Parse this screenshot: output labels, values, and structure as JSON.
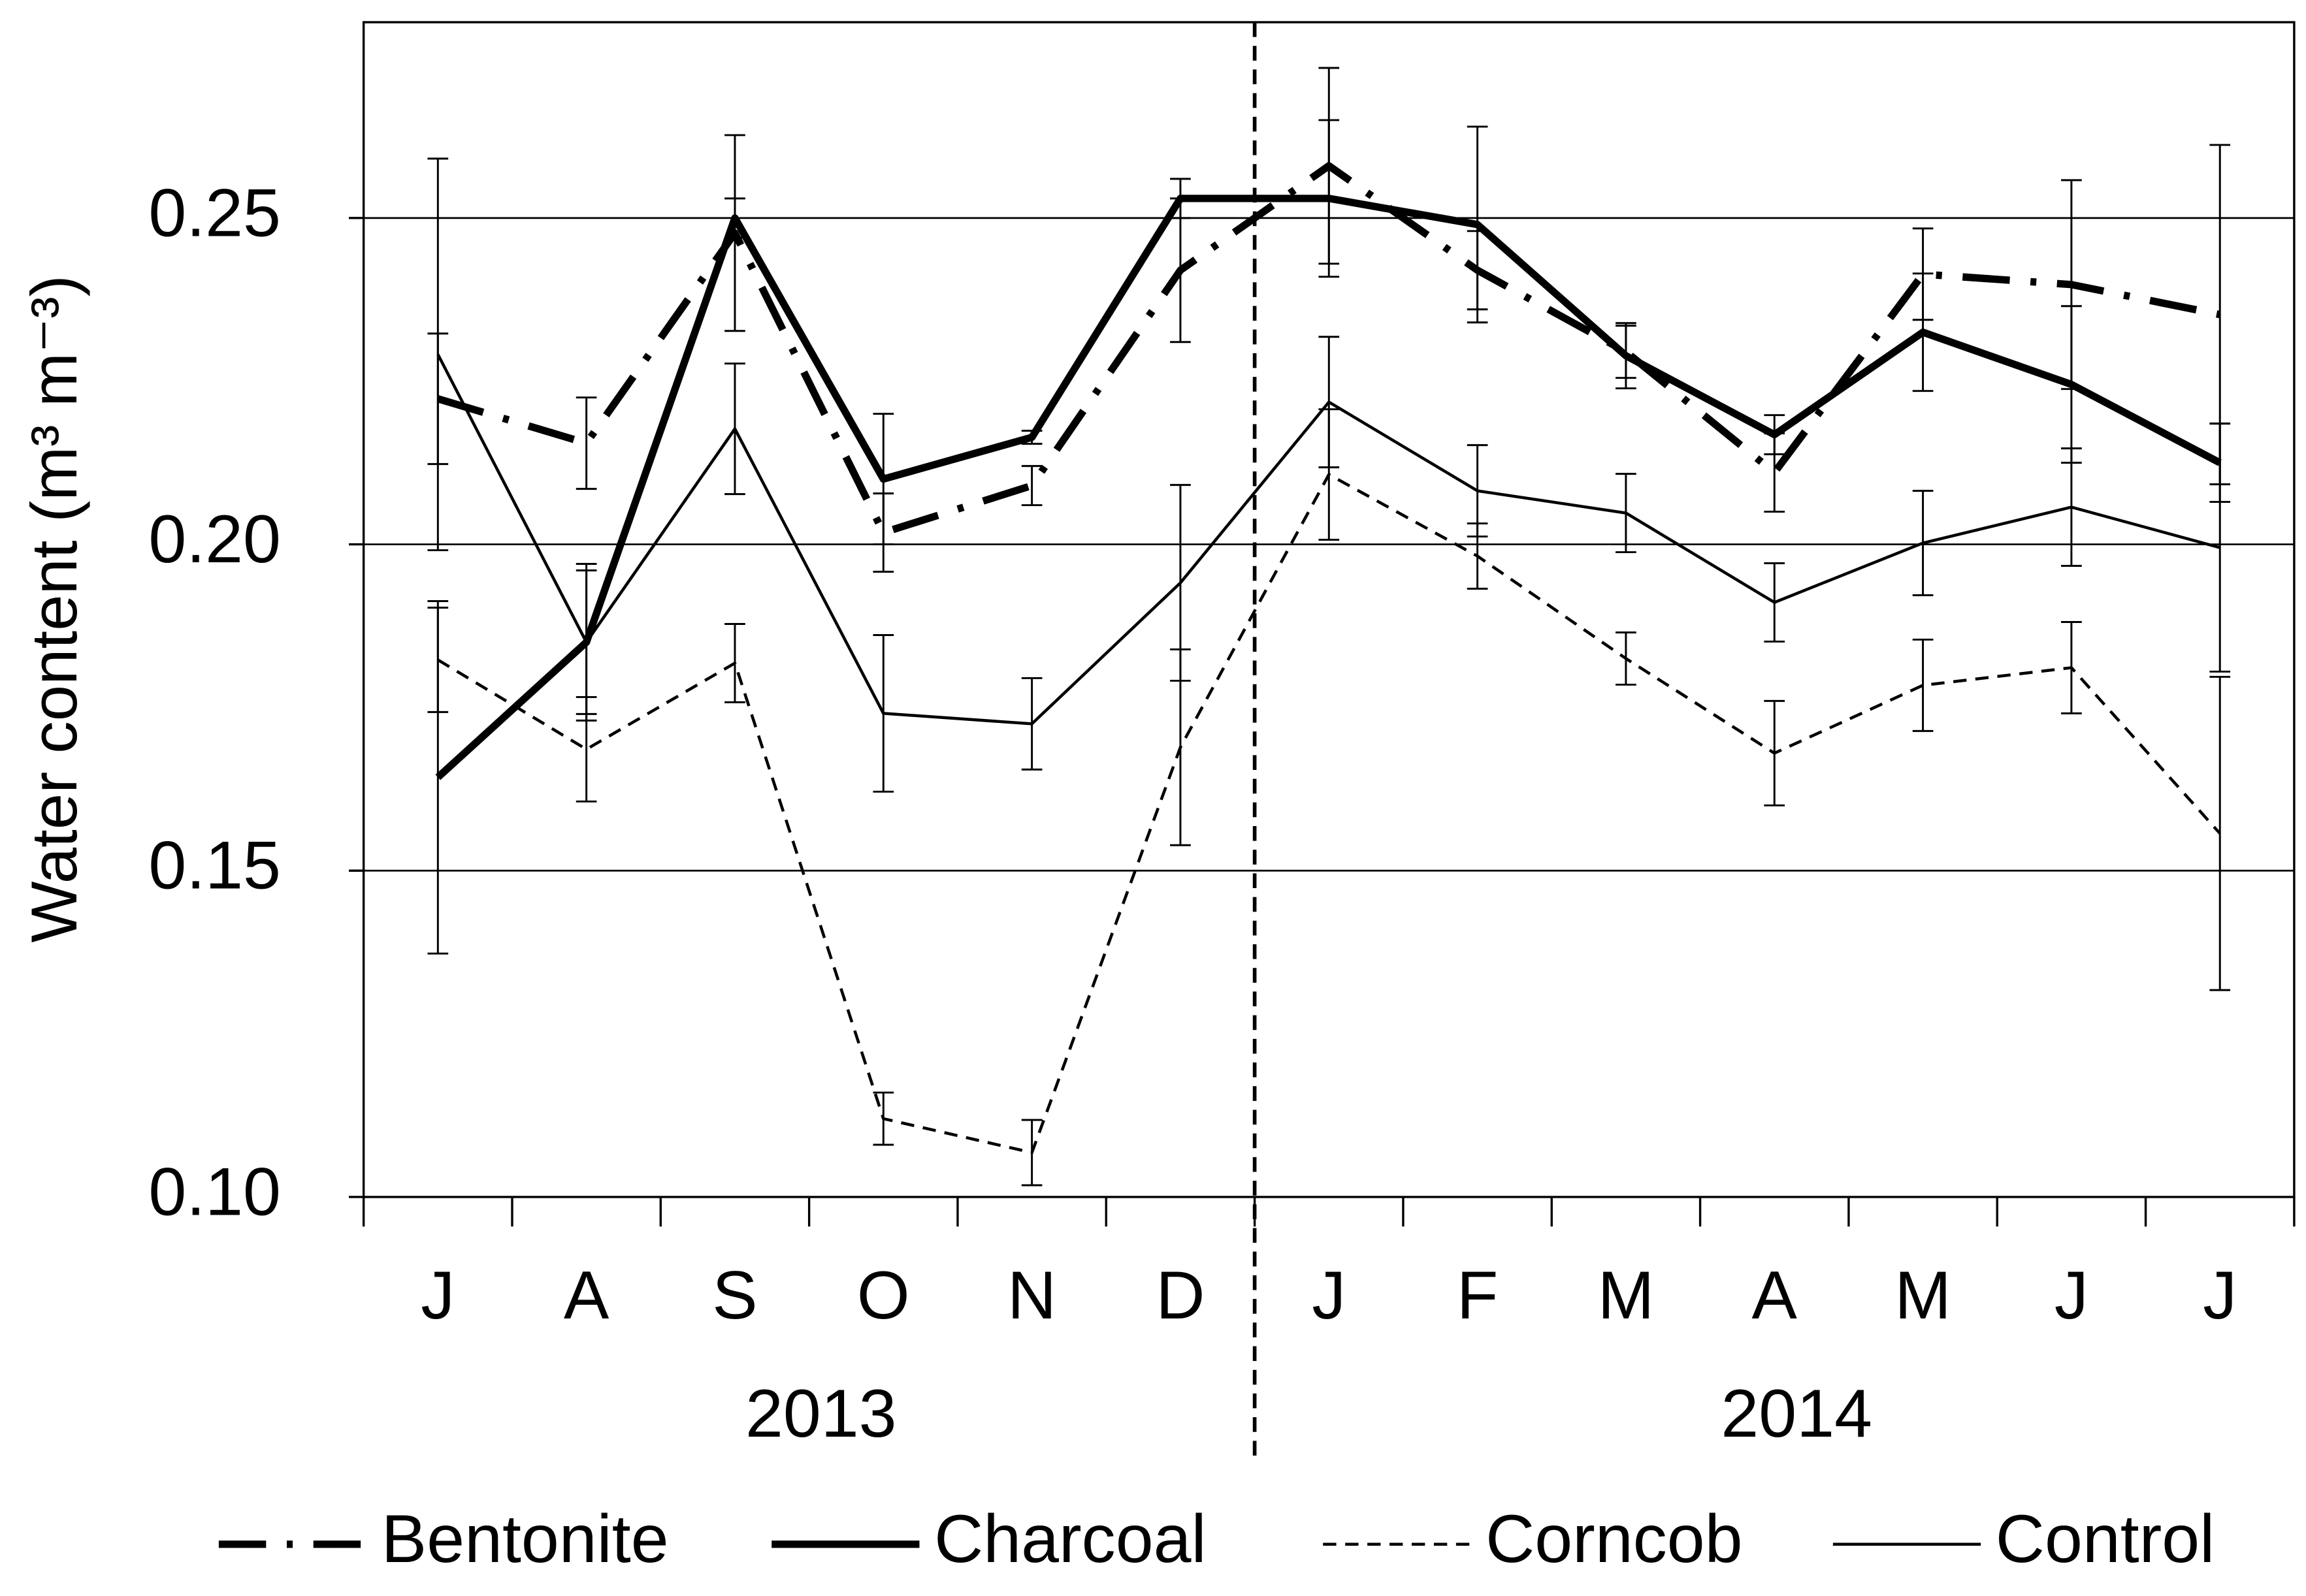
{
  "chart_data": {
    "type": "line",
    "y_label": "Water content (m³ m⁻³)",
    "categories": [
      "J",
      "A",
      "S",
      "O",
      "N",
      "D",
      "J",
      "F",
      "M",
      "A",
      "M",
      "J",
      "J"
    ],
    "year_labels": [
      "2013",
      "2014"
    ],
    "ylim": [
      0.1,
      0.28
    ],
    "yticks": [
      {
        "value": 0.1,
        "label": "0.10"
      },
      0.15,
      {
        "value": 0.2,
        "label": "0.20"
      },
      0.25
    ],
    "grid": true,
    "series": [
      {
        "name": "Bentonite",
        "color": "#000000",
        "style": "dashdot",
        "width": 5,
        "values": [
          0.2223,
          0.2155,
          0.2477,
          0.2018,
          0.209,
          0.242,
          0.258,
          0.242,
          0.2295,
          0.211,
          0.2414,
          0.2398,
          0.2352
        ],
        "errors": [
          0.01,
          0.007,
          0.015,
          0.006,
          0.003,
          0.011,
          0.015,
          0.006,
          0.004,
          0.006,
          0.007,
          0.016,
          0.026
        ]
      },
      {
        "name": "Charcoal",
        "color": "#000000",
        "style": "solid",
        "width": 5,
        "values": [
          0.1643,
          0.185,
          0.25,
          0.21,
          0.2164,
          0.253,
          0.253,
          0.249,
          0.2289,
          0.2168,
          0.2325,
          0.2245,
          0.2125
        ],
        "errors": [
          0.027,
          0.011,
          0.003,
          0.01,
          0.001,
          0.003,
          0.012,
          0.015,
          0.005,
          0.003,
          0.009,
          0.012,
          0.006
        ]
      },
      {
        "name": "Corncob",
        "color": "#000000",
        "style": "dashed",
        "width": 2,
        "values": [
          0.1823,
          0.1686,
          0.1818,
          0.112,
          0.1068,
          0.1689,
          0.2107,
          0.1982,
          0.1825,
          0.168,
          0.1784,
          0.1811,
          0.1557
        ],
        "errors": [
          0.008,
          0.008,
          0.006,
          0.004,
          0.005,
          0.015,
          0.01,
          0.005,
          0.004,
          0.008,
          0.007,
          0.007,
          0.024
        ]
      },
      {
        "name": "Control",
        "color": "#000000",
        "style": "solid",
        "width": 2,
        "values": [
          0.2291,
          0.185,
          0.2177,
          0.1741,
          0.1725,
          0.1941,
          0.2218,
          0.2082,
          0.2048,
          0.1911,
          0.2002,
          0.2057,
          0.1995
        ],
        "errors": [
          0.03,
          0.012,
          0.01,
          0.012,
          0.007,
          0.015,
          0.01,
          0.007,
          0.006,
          0.006,
          0.008,
          0.009,
          0.019
        ]
      }
    ]
  }
}
